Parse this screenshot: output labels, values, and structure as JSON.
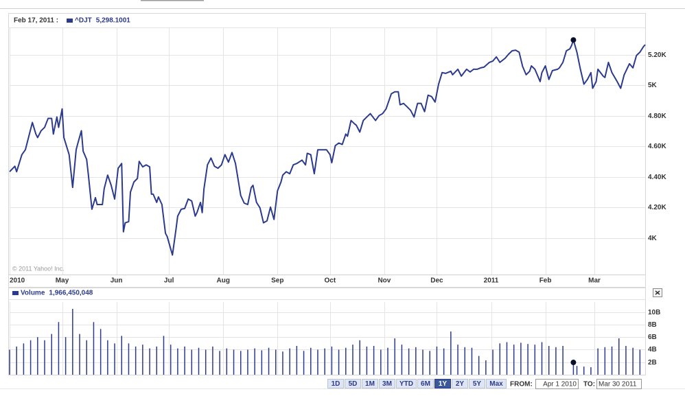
{
  "chart_data": [
    {
      "type": "line",
      "x": [
        0,
        3,
        4,
        7,
        9,
        13,
        15,
        16,
        18,
        20,
        22,
        24,
        25,
        27,
        28,
        30,
        31,
        34,
        36,
        38,
        39,
        41,
        42,
        44,
        45,
        47,
        49,
        50,
        53,
        54,
        56,
        58,
        60,
        62,
        64,
        65,
        66,
        68,
        69,
        71,
        73,
        74,
        76,
        78,
        80,
        81,
        82,
        84,
        85,
        87,
        89,
        90,
        93,
        95,
        96,
        98,
        100,
        102,
        104,
        106,
        107,
        109,
        110,
        111,
        113,
        115,
        117,
        119,
        121,
        123,
        125,
        127,
        129,
        132,
        134,
        136,
        138,
        139,
        141,
        143,
        145,
        147,
        149,
        151,
        153,
        155,
        156,
        158,
        160,
        162,
        164,
        167,
        169,
        170,
        172,
        174,
        176,
        178,
        181,
        183,
        184,
        186,
        188,
        190,
        192,
        193,
        195,
        197,
        198,
        200,
        202,
        204,
        206,
        209,
        211,
        213,
        215,
        218,
        220,
        222,
        223,
        225,
        227,
        229,
        231,
        233,
        235,
        237,
        239,
        241,
        243,
        245,
        247,
        249,
        252,
        253,
        256,
        258,
        261,
        263,
        265,
        267,
        269,
        271,
        274,
        276,
        278,
        280,
        283,
        285,
        287,
        289,
        291,
        293,
        295,
        297,
        298,
        300,
        303,
        304,
        306,
        308,
        310,
        313,
        314,
        316,
        318,
        320,
        321,
        322,
        324,
        326,
        328,
        330,
        332,
        333,
        335,
        336,
        339,
        340,
        342,
        344,
        347,
        349,
        351,
        354,
        356,
        358,
        360,
        362,
        363
      ],
      "series": [
        {
          "name": "^DJT",
          "color": "#2b3a8c",
          "values": [
            4434,
            4470,
            4434,
            4546,
            4578,
            4757,
            4681,
            4658,
            4703,
            4725,
            4784,
            4784,
            4681,
            4793,
            4725,
            4846,
            4658,
            4546,
            4331,
            4578,
            4622,
            4703,
            4569,
            4515,
            4412,
            4188,
            4264,
            4219,
            4219,
            4322,
            4412,
            4345,
            4255,
            4457,
            4488,
            4040,
            4099,
            4107,
            4300,
            4367,
            4390,
            4502,
            4466,
            4479,
            4466,
            4287,
            4287,
            4233,
            4269,
            4219,
            4031,
            4009,
            3888,
            4054,
            4143,
            4188,
            4193,
            4255,
            4242,
            4143,
            4166,
            4233,
            4166,
            4322,
            4479,
            4524,
            4470,
            4457,
            4479,
            4546,
            4497,
            4560,
            4488,
            4278,
            4228,
            4219,
            4331,
            4345,
            4233,
            4197,
            4099,
            4112,
            4202,
            4121,
            4309,
            4367,
            4412,
            4434,
            4421,
            4479,
            4488,
            4510,
            4479,
            4555,
            4546,
            4421,
            4578,
            4578,
            4578,
            4546,
            4493,
            4605,
            4622,
            4613,
            4681,
            4667,
            4770,
            4748,
            4739,
            4694,
            4770,
            4793,
            4815,
            4770,
            4802,
            4815,
            4846,
            4945,
            4958,
            4958,
            4873,
            4882,
            4860,
            4837,
            4793,
            4882,
            4882,
            4828,
            4936,
            4927,
            4891,
            5008,
            5084,
            5079,
            5093,
            5070,
            5106,
            5061,
            5106,
            5088,
            5106,
            5106,
            5115,
            5120,
            5151,
            5160,
            5187,
            5151,
            5178,
            5205,
            5227,
            5231,
            5218,
            5124,
            5070,
            5093,
            5128,
            5106,
            5025,
            5084,
            5128,
            5039,
            5097,
            5106,
            5115,
            5151,
            5227,
            5240,
            5263,
            5298.1001,
            5218,
            5106,
            5008,
            5039,
            5084,
            4981,
            5025,
            5106,
            5061,
            5052,
            5151,
            5084,
            5025,
            4981,
            5070,
            5142,
            5115,
            5196,
            5218,
            5254,
            5267
          ]
        }
      ],
      "highlight": {
        "label": "Feb 17, 2011 :",
        "x": 322,
        "value": 5298.1001,
        "value_label": "5,298.1001"
      },
      "xlim": [
        0,
        363
      ],
      "xticks": [
        {
          "value": 0,
          "label": "2010"
        },
        {
          "value": 30,
          "label": "May"
        },
        {
          "value": 61,
          "label": "Jun"
        },
        {
          "value": 91,
          "label": "Jul"
        },
        {
          "value": 122,
          "label": "Aug"
        },
        {
          "value": 153,
          "label": "Sep"
        },
        {
          "value": 183,
          "label": "Oct"
        },
        {
          "value": 214,
          "label": "Nov"
        },
        {
          "value": 244,
          "label": "Dec"
        },
        {
          "value": 275,
          "label": "2011"
        },
        {
          "value": 306,
          "label": "Feb"
        },
        {
          "value": 334,
          "label": "Mar"
        }
      ],
      "ylim": [
        3760,
        5380
      ],
      "yticks": [
        {
          "value": 4000,
          "label": "4K"
        },
        {
          "value": 4200,
          "label": "4.20K"
        },
        {
          "value": 4400,
          "label": "4.40K"
        },
        {
          "value": 4600,
          "label": "4.60K"
        },
        {
          "value": 4800,
          "label": "4.80K"
        },
        {
          "value": 5000,
          "label": "5K"
        },
        {
          "value": 5200,
          "label": "5.20K"
        }
      ],
      "grid": true,
      "copyright": "© 2011 Yahoo! Inc."
    },
    {
      "type": "bar",
      "x": [
        0,
        4,
        8,
        12,
        16,
        20,
        24,
        28,
        32,
        36,
        40,
        44,
        48,
        52,
        56,
        60,
        64,
        68,
        72,
        76,
        80,
        84,
        88,
        92,
        96,
        100,
        104,
        108,
        112,
        116,
        120,
        124,
        128,
        132,
        136,
        140,
        144,
        148,
        152,
        156,
        160,
        164,
        168,
        172,
        176,
        180,
        184,
        188,
        192,
        196,
        200,
        204,
        208,
        212,
        216,
        220,
        224,
        228,
        232,
        236,
        240,
        244,
        248,
        252,
        256,
        260,
        264,
        268,
        272,
        276,
        280,
        284,
        288,
        292,
        296,
        300,
        304,
        308,
        312,
        316,
        322,
        324,
        328,
        332,
        336,
        340,
        344,
        348,
        352,
        356,
        360
      ],
      "series": [
        {
          "name": "Volume",
          "color": "#2b3a8c",
          "values": [
            4000000000,
            4500000000,
            5000000000,
            5500000000,
            6000000000,
            5500000000,
            6500000000,
            8400000000,
            6000000000,
            10500000000,
            6500000000,
            5500000000,
            8400000000,
            7300000000,
            5500000000,
            5000000000,
            6200000000,
            5000000000,
            4500000000,
            4800000000,
            4200000000,
            4500000000,
            6200000000,
            4800000000,
            4200000000,
            4500000000,
            4000000000,
            4300000000,
            4000000000,
            4500000000,
            3800000000,
            4200000000,
            4000000000,
            3800000000,
            4000000000,
            4200000000,
            3900000000,
            4300000000,
            4000000000,
            3700000000,
            4200000000,
            4600000000,
            3800000000,
            4300000000,
            4000000000,
            4200000000,
            4500000000,
            4000000000,
            4300000000,
            4800000000,
            5500000000,
            4500000000,
            4600000000,
            4000000000,
            4300000000,
            5800000000,
            4800000000,
            4200000000,
            4400000000,
            4000000000,
            3800000000,
            4500000000,
            4200000000,
            6900000000,
            4800000000,
            4400000000,
            4300000000,
            3000000000,
            2300000000,
            4000000000,
            5000000000,
            5200000000,
            4800000000,
            5100000000,
            4900000000,
            4800000000,
            5200000000,
            4600000000,
            4400000000,
            4600000000,
            1966450048,
            1400000000,
            1300000000,
            1200000000,
            4200000000,
            4400000000,
            4500000000,
            5800000000,
            4600000000,
            4300000000,
            4000000000
          ]
        }
      ],
      "highlight": {
        "x": 322,
        "value": 1966450048,
        "value_label": "1,966,450,048"
      },
      "xlim": [
        0,
        363
      ],
      "ylim": [
        0,
        11600000000
      ],
      "yticks": [
        {
          "value": 2000000000,
          "label": "2B"
        },
        {
          "value": 4000000000,
          "label": "4B"
        },
        {
          "value": 6000000000,
          "label": "6B"
        },
        {
          "value": 8000000000,
          "label": "8B"
        },
        {
          "value": 10000000000,
          "label": "10B"
        }
      ],
      "grid": true
    }
  ],
  "controls": {
    "ranges": [
      "1D",
      "5D",
      "1M",
      "3M",
      "YTD",
      "6M",
      "1Y",
      "2Y",
      "5Y",
      "Max"
    ],
    "selected": "1Y",
    "from_label": "FROM:",
    "from": "Apr 1 2010",
    "to_label": "TO:",
    "to": "Mar 30 2011"
  }
}
